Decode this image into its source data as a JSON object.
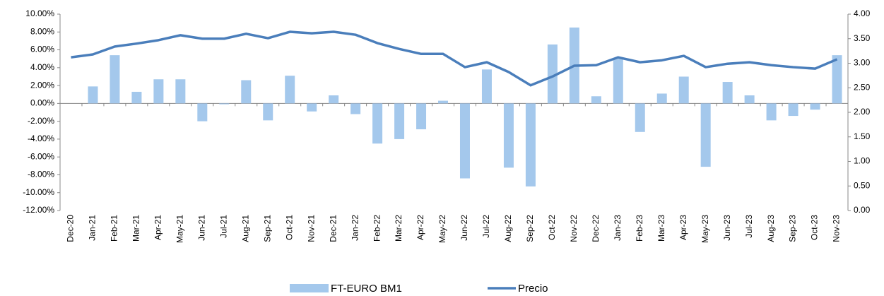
{
  "chart_data": {
    "type": "bar_line",
    "categories": [
      "Dec-20",
      "Jan-21",
      "Feb-21",
      "Mar-21",
      "Apr-21",
      "May-21",
      "Jun-21",
      "Jul-21",
      "Aug-21",
      "Sep-21",
      "Oct-21",
      "Nov-21",
      "Dec-21",
      "Jan-22",
      "Feb-22",
      "Mar-22",
      "Apr-22",
      "May-22",
      "Jun-22",
      "Jul-22",
      "Aug-22",
      "Sep-22",
      "Oct-22",
      "Nov-22",
      "Dec-22",
      "Jan-23",
      "Feb-23",
      "Mar-23",
      "Apr-23",
      "May-23",
      "Jun-23",
      "Jul-23",
      "Aug-23",
      "Sep-23",
      "Oct-23",
      "Nov-23"
    ],
    "series": [
      {
        "name": "FT-EURO BM1",
        "type": "bar",
        "color": "#a4c8ec",
        "values": [
          0,
          1.9,
          5.4,
          1.3,
          2.7,
          2.7,
          -2.0,
          -0.1,
          2.6,
          -1.9,
          3.1,
          -0.9,
          0.9,
          -1.2,
          -4.5,
          -4.0,
          -2.9,
          0.3,
          -8.4,
          3.8,
          -7.2,
          -9.3,
          6.6,
          8.5,
          0.8,
          5.0,
          -3.2,
          1.1,
          3.0,
          -7.1,
          2.4,
          0.9,
          -1.9,
          -1.4,
          -0.7,
          5.4
        ]
      },
      {
        "name": "Precio",
        "type": "line",
        "axis": "y2",
        "color": "#4a7ebb",
        "values": [
          3.12,
          3.18,
          3.34,
          3.4,
          3.47,
          3.57,
          3.5,
          3.5,
          3.6,
          3.51,
          3.64,
          3.61,
          3.64,
          3.58,
          3.41,
          3.29,
          3.19,
          3.19,
          2.92,
          3.02,
          2.82,
          2.55,
          2.73,
          2.95,
          2.96,
          3.12,
          3.02,
          3.06,
          3.15,
          2.92,
          2.99,
          3.02,
          2.96,
          2.92,
          2.89,
          3.08
        ]
      }
    ],
    "ylim": [
      -12,
      10
    ],
    "yticks": [
      {
        "value": -12,
        "label": "-12.00%"
      },
      {
        "value": -10,
        "label": "-10.00%"
      },
      {
        "value": -8,
        "label": "-8.00%"
      },
      {
        "value": -6,
        "label": "-6.00%"
      },
      {
        "value": -4,
        "label": "-4.00%"
      },
      {
        "value": -2,
        "label": "-2.00%"
      },
      {
        "value": 0,
        "label": "0.00%"
      },
      {
        "value": 2,
        "label": "2.00%"
      },
      {
        "value": 4,
        "label": "4.00%"
      },
      {
        "value": 6,
        "label": "6.00%"
      },
      {
        "value": 8,
        "label": "8.00%"
      },
      {
        "value": 10,
        "label": "10.00%"
      }
    ],
    "y2lim": [
      0,
      4
    ],
    "y2ticks": [
      {
        "value": 0,
        "label": "0.00"
      },
      {
        "value": 0.5,
        "label": "0.50"
      },
      {
        "value": 1,
        "label": "1.00"
      },
      {
        "value": 1.5,
        "label": "1.50"
      },
      {
        "value": 2,
        "label": "2.00"
      },
      {
        "value": 2.5,
        "label": "2.50"
      },
      {
        "value": 3,
        "label": "3.00"
      },
      {
        "value": 3.5,
        "label": "3.50"
      },
      {
        "value": 4,
        "label": "4.00"
      }
    ],
    "legend": "bottom"
  }
}
